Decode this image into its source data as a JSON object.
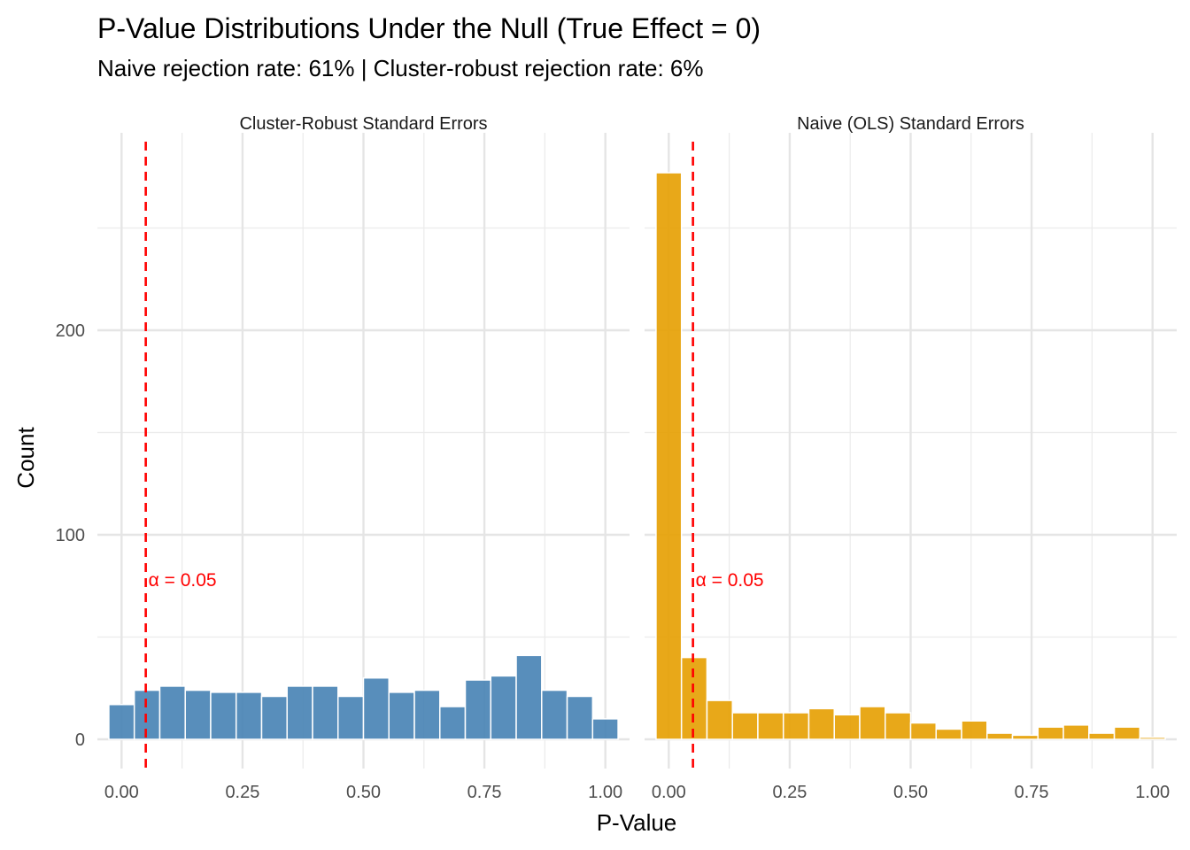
{
  "title": "P-Value Distributions Under the Null (True Effect = 0)",
  "subtitle": "Naive rejection rate: 61% | Cluster-robust rejection rate: 6%",
  "chart_data": {
    "type": "bar",
    "subtype": "histogram-facets",
    "xlabel": "P-Value",
    "ylabel": "Count",
    "xlim": [
      -0.05,
      1.05
    ],
    "ylim": [
      0,
      290
    ],
    "x_ticks": [
      0.0,
      0.25,
      0.5,
      0.75,
      1.0
    ],
    "x_tick_labels": [
      "0.00",
      "0.25",
      "0.50",
      "0.75",
      "1.00"
    ],
    "y_ticks": [
      0,
      100,
      200
    ],
    "y_tick_labels": [
      "0",
      "100",
      "200"
    ],
    "grid": true,
    "bin_width": 0.05263,
    "bin_centers": [
      0.0,
      0.0526,
      0.1053,
      0.1579,
      0.2105,
      0.2632,
      0.3158,
      0.3684,
      0.4211,
      0.4737,
      0.5263,
      0.5789,
      0.6316,
      0.6842,
      0.7368,
      0.7895,
      0.8421,
      0.8947,
      0.9474,
      1.0
    ],
    "reference_line": {
      "x": 0.05,
      "label": "α = 0.05",
      "label_y": 78,
      "color": "#ff0000",
      "style": "dashed"
    },
    "panels": [
      {
        "name": "Cluster-Robust Standard Errors",
        "color": "#4682b4",
        "values": [
          17,
          24,
          26,
          24,
          23,
          23,
          21,
          26,
          26,
          21,
          30,
          23,
          24,
          16,
          29,
          31,
          41,
          24,
          21,
          10
        ]
      },
      {
        "name": "Naive (OLS) Standard Errors",
        "color": "#e69f00",
        "values": [
          277,
          40,
          19,
          13,
          13,
          13,
          15,
          12,
          16,
          13,
          8,
          5,
          9,
          3,
          2,
          6,
          7,
          3,
          6,
          1
        ]
      }
    ]
  }
}
